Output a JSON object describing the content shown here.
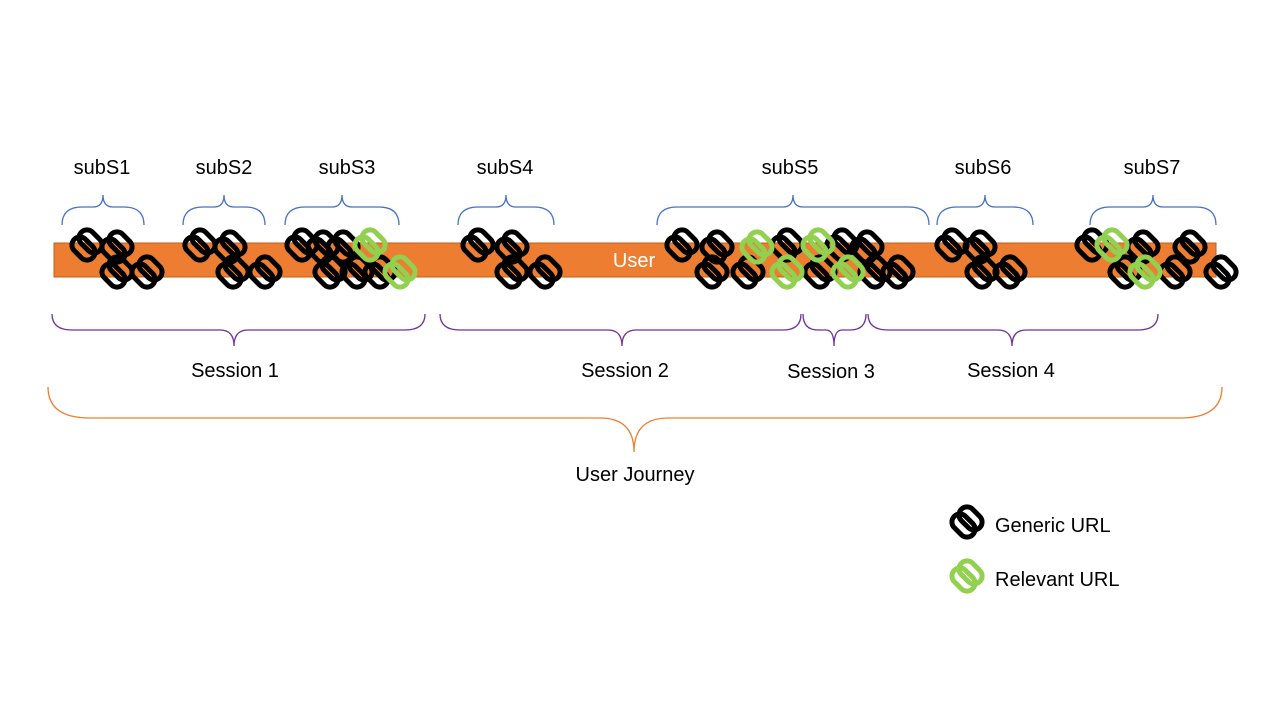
{
  "bar": {
    "label": "User",
    "color": "#ED7D31"
  },
  "colors": {
    "generic": "#000000",
    "relevant": "#92D050",
    "sub_brace": "#4472C4",
    "session_brace": "#7030A0",
    "journey_brace": "#ED7D31"
  },
  "subsessions": [
    "subS1",
    "subS2",
    "subS3",
    "subS4",
    "subS5",
    "subS6",
    "subS7"
  ],
  "sessions": [
    "Session 1",
    "Session 2",
    "Session 3",
    "Session 4"
  ],
  "journey": {
    "label": "User Journey"
  },
  "legend": {
    "generic": "Generic URL",
    "relevant": "Relevant URL",
    "icon": "link-icon"
  }
}
